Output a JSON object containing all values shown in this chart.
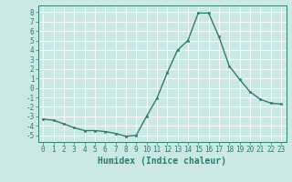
{
  "x": [
    0,
    1,
    2,
    3,
    4,
    5,
    6,
    7,
    8,
    9,
    10,
    11,
    12,
    13,
    14,
    15,
    16,
    17,
    18,
    19,
    20,
    21,
    22,
    23
  ],
  "y": [
    -3.3,
    -3.4,
    -3.8,
    -4.2,
    -4.5,
    -4.5,
    -4.6,
    -4.8,
    -5.1,
    -5.0,
    -3.0,
    -1.1,
    1.6,
    4.0,
    5.0,
    7.9,
    7.9,
    5.4,
    2.3,
    0.9,
    -0.4,
    -1.2,
    -1.6,
    -1.7
  ],
  "line_color": "#2d7d6e",
  "marker": "o",
  "markersize": 1.8,
  "linewidth": 1.0,
  "bg_color": "#cce8e4",
  "grid_color": "#ffffff",
  "xlabel": "Humidex (Indice chaleur)",
  "xlabel_fontsize": 7,
  "tick_fontsize": 5.5,
  "yticks": [
    -5,
    -4,
    -3,
    -2,
    -1,
    0,
    1,
    2,
    3,
    4,
    5,
    6,
    7,
    8
  ],
  "xticks": [
    0,
    1,
    2,
    3,
    4,
    5,
    6,
    7,
    8,
    9,
    10,
    11,
    12,
    13,
    14,
    15,
    16,
    17,
    18,
    19,
    20,
    21,
    22,
    23
  ],
  "xlim": [
    -0.5,
    23.5
  ],
  "ylim": [
    -5.7,
    8.7
  ]
}
